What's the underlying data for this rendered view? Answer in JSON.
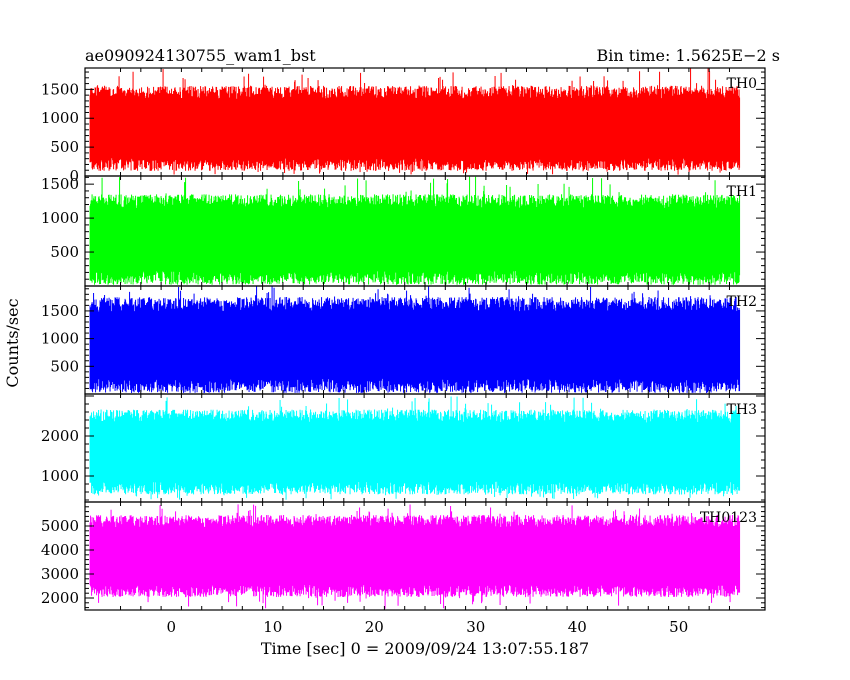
{
  "header": {
    "title": "ae090924130755_wam1_bst",
    "bin_time": "Bin time: 1.5625E−2 s"
  },
  "axes": {
    "xlabel": "Time [sec] 0 = 2009/09/24 13:07:55.187",
    "ylabel": "Counts/sec"
  },
  "chart_data": {
    "type": "line",
    "shared_x": true,
    "xlim": [
      -8.5,
      58.5
    ],
    "data_x_range": [
      -8,
      56
    ],
    "x_ticks": [
      0,
      10,
      20,
      30,
      40,
      50
    ],
    "x_tick_labels": [
      "0",
      "10",
      "20",
      "30",
      "40",
      "50"
    ],
    "panels": [
      {
        "name": "TH0",
        "color": "#ff0000",
        "ylim": [
          0,
          1870
        ],
        "y_ticks": [
          0,
          500,
          1000,
          1500
        ],
        "y_tick_labels": [
          "0",
          "500",
          "1000",
          "1500"
        ],
        "typical_low": 200,
        "typical_high": 1450,
        "min_spike": 20,
        "max_spike": 1870
      },
      {
        "name": "TH1",
        "color": "#00ff00",
        "ylim": [
          0,
          1620
        ],
        "y_ticks": [
          500,
          1000,
          1500
        ],
        "y_tick_labels": [
          "500",
          "1000",
          "1500"
        ],
        "typical_low": 120,
        "typical_high": 1250,
        "min_spike": 20,
        "max_spike": 1620
      },
      {
        "name": "TH2",
        "color": "#0000ff",
        "ylim": [
          0,
          1950
        ],
        "y_ticks": [
          500,
          1000,
          1500
        ],
        "y_tick_labels": [
          "500",
          "1000",
          "1500"
        ],
        "typical_low": 150,
        "typical_high": 1620,
        "min_spike": 20,
        "max_spike": 1950
      },
      {
        "name": "TH3",
        "color": "#00ffff",
        "ylim": [
          350,
          3050
        ],
        "y_ticks": [
          1000,
          2000
        ],
        "y_tick_labels": [
          "1000",
          "2000"
        ],
        "typical_low": 700,
        "typical_high": 2500,
        "min_spike": 400,
        "max_spike": 3000
      },
      {
        "name": "TH0123",
        "color": "#ff00ff",
        "ylim": [
          1500,
          6000
        ],
        "y_ticks": [
          2000,
          3000,
          4000,
          5000
        ],
        "y_tick_labels": [
          "2000",
          "3000",
          "4000",
          "5000"
        ],
        "typical_low": 2300,
        "typical_high": 5200,
        "min_spike": 1550,
        "max_spike": 5900
      }
    ]
  }
}
